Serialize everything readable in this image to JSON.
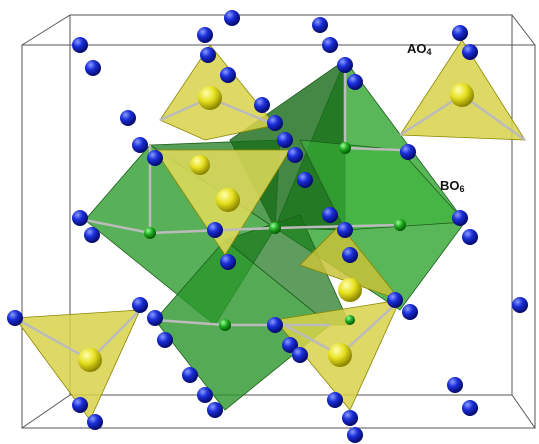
{
  "labels": [
    {
      "base": "AO",
      "subscript": "4"
    },
    {
      "base": "BO",
      "subscript": "6"
    }
  ]
}
